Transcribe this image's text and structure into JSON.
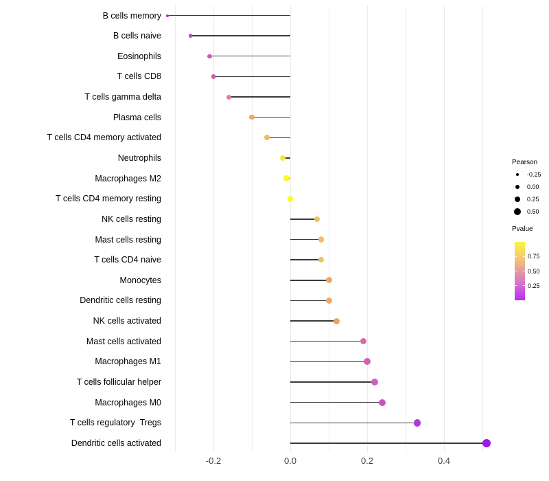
{
  "chart_data": {
    "type": "scatter",
    "subtype": "lollipop",
    "title": "",
    "xlabel": "",
    "ylabel": "",
    "xlim": [
      -0.35,
      0.55
    ],
    "grid": "vertical-only",
    "gridline_values": [
      -0.3,
      -0.2,
      -0.1,
      0.0,
      0.1,
      0.2,
      0.3,
      0.4,
      0.5
    ],
    "x_ticks": [
      {
        "value": -0.2,
        "label": "-0.2"
      },
      {
        "value": 0.0,
        "label": "0.0"
      },
      {
        "value": 0.2,
        "label": "0.2"
      },
      {
        "value": 0.4,
        "label": "0.4"
      }
    ],
    "points": [
      {
        "label": "B cells memory",
        "pearson": -0.32,
        "dot_color": "#ad36cf",
        "dot_size": 4
      },
      {
        "label": "B cells naive",
        "pearson": -0.26,
        "dot_color": "#ba46cb",
        "dot_size": 5.5
      },
      {
        "label": "Eosinophils",
        "pearson": -0.21,
        "dot_color": "#c95bb2",
        "dot_size": 6.5
      },
      {
        "label": "T cells CD8",
        "pearson": -0.2,
        "dot_color": "#c75fab",
        "dot_size": 6.5
      },
      {
        "label": "T cells gamma delta",
        "pearson": -0.16,
        "dot_color": "#dd8394",
        "dot_size": 7
      },
      {
        "label": "Plasma cells",
        "pearson": -0.1,
        "dot_color": "#eaaa60",
        "dot_size": 7.5
      },
      {
        "label": "T cells CD4 memory activated",
        "pearson": -0.06,
        "dot_color": "#ecbc66",
        "dot_size": 8
      },
      {
        "label": "Neutrophils",
        "pearson": -0.02,
        "dot_color": "#f6e84a",
        "dot_size": 8
      },
      {
        "label": "Macrophages M2",
        "pearson": -0.01,
        "dot_color": "#fdf92e",
        "dot_size": 8.5
      },
      {
        "label": "T cells CD4 memory resting",
        "pearson": 0.0,
        "dot_color": "#fdf930",
        "dot_size": 8.5
      },
      {
        "label": "NK cells resting",
        "pearson": 0.07,
        "dot_color": "#edc360",
        "dot_size": 8.5
      },
      {
        "label": "Mast cells resting",
        "pearson": 0.08,
        "dot_color": "#eec25e",
        "dot_size": 8.5
      },
      {
        "label": "T cells CD4 naive",
        "pearson": 0.08,
        "dot_color": "#eec45e",
        "dot_size": 8.5
      },
      {
        "label": "Monocytes",
        "pearson": 0.1,
        "dot_color": "#ebab5e",
        "dot_size": 9
      },
      {
        "label": "Dendritic cells resting",
        "pearson": 0.1,
        "dot_color": "#eaad60",
        "dot_size": 9
      },
      {
        "label": "NK cells activated",
        "pearson": 0.12,
        "dot_color": "#e9a35e",
        "dot_size": 9
      },
      {
        "label": "Mast cells activated",
        "pearson": 0.19,
        "dot_color": "#d86aa6",
        "dot_size": 9.5
      },
      {
        "label": "Macrophages M1",
        "pearson": 0.2,
        "dot_color": "#d263b1",
        "dot_size": 10
      },
      {
        "label": "T cells follicular helper",
        "pearson": 0.22,
        "dot_color": "#cd5ec0",
        "dot_size": 10
      },
      {
        "label": "Macrophages M0",
        "pearson": 0.24,
        "dot_color": "#c853c7",
        "dot_size": 10
      },
      {
        "label": "T cells regulatory  Tregs",
        "pearson": 0.33,
        "dot_color": "#aa3cd9",
        "dot_size": 10.5
      },
      {
        "label": "Dendritic cells activated",
        "pearson": 0.51,
        "dot_color": "#9a1be6",
        "dot_size": 12
      }
    ],
    "size_legend": {
      "title": "Pearson",
      "entries": [
        {
          "label": "-0.25",
          "diameter": 4.5
        },
        {
          "label": "0.00",
          "diameter": 6.5
        },
        {
          "label": "0.25",
          "diameter": 8.5
        },
        {
          "label": "0.50",
          "diameter": 10
        }
      ]
    },
    "color_legend": {
      "title": "Pvalue",
      "tick_labels": [
        "0.75",
        "0.50",
        "0.25"
      ],
      "tick_values": [
        0.75,
        0.5,
        0.25
      ],
      "range_top": 1.0,
      "range_bottom": 0.0,
      "gradient_stops": [
        {
          "color": "#fbf43f",
          "pos": 0
        },
        {
          "color": "#f5cb72",
          "pos": 27
        },
        {
          "color": "#e59aa2",
          "pos": 50
        },
        {
          "color": "#d26fd0",
          "pos": 74
        },
        {
          "color": "#b92bf5",
          "pos": 100
        }
      ]
    }
  },
  "colors": {
    "background": "#ffffff",
    "gridline": "#ebebeb",
    "stem": "#3a3a3a",
    "axis_tick_text": "#404040",
    "category_text": "#000000",
    "legend_dot": "#000000"
  }
}
